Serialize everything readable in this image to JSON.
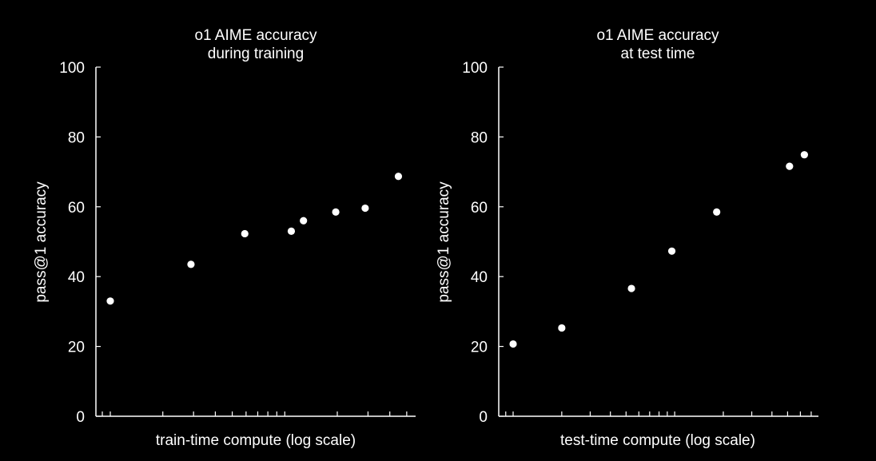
{
  "chart_data": [
    {
      "type": "scatter",
      "title": "o1 AIME accuracy",
      "subtitle": "during training",
      "xlabel": "train-time compute (log scale)",
      "ylabel": "pass@1 accuracy",
      "ylim": [
        0,
        100
      ],
      "yticks": [
        "0",
        "20",
        "40",
        "60",
        "80",
        "100"
      ],
      "x_scale": "log",
      "grid": false,
      "series": [
        {
          "points": [
            {
              "x": 1,
              "y": 33
            },
            {
              "x": 2.9,
              "y": 43.5
            },
            {
              "x": 5.9,
              "y": 52.3
            },
            {
              "x": 10.9,
              "y": 53
            },
            {
              "x": 12.8,
              "y": 56
            },
            {
              "x": 19.6,
              "y": 58.5
            },
            {
              "x": 28.9,
              "y": 59.6
            },
            {
              "x": 44.8,
              "y": 68.7
            }
          ]
        }
      ],
      "color": "#ffffff"
    },
    {
      "type": "scatter",
      "title": "o1 AIME accuracy",
      "subtitle": "at test time",
      "xlabel": "test-time compute (log scale)",
      "ylabel": "pass@1 accuracy",
      "ylim": [
        0,
        100
      ],
      "yticks": [
        "0",
        "20",
        "40",
        "60",
        "80",
        "100"
      ],
      "x_scale": "log",
      "grid": false,
      "series": [
        {
          "points": [
            {
              "x": 1,
              "y": 20.7
            },
            {
              "x": 2.0,
              "y": 25.3
            },
            {
              "x": 5.4,
              "y": 36.6
            },
            {
              "x": 9.6,
              "y": 47.3
            },
            {
              "x": 18.2,
              "y": 58.5
            },
            {
              "x": 51.4,
              "y": 71.6
            },
            {
              "x": 63.5,
              "y": 74.9
            }
          ]
        }
      ],
      "color": "#ffffff"
    }
  ]
}
